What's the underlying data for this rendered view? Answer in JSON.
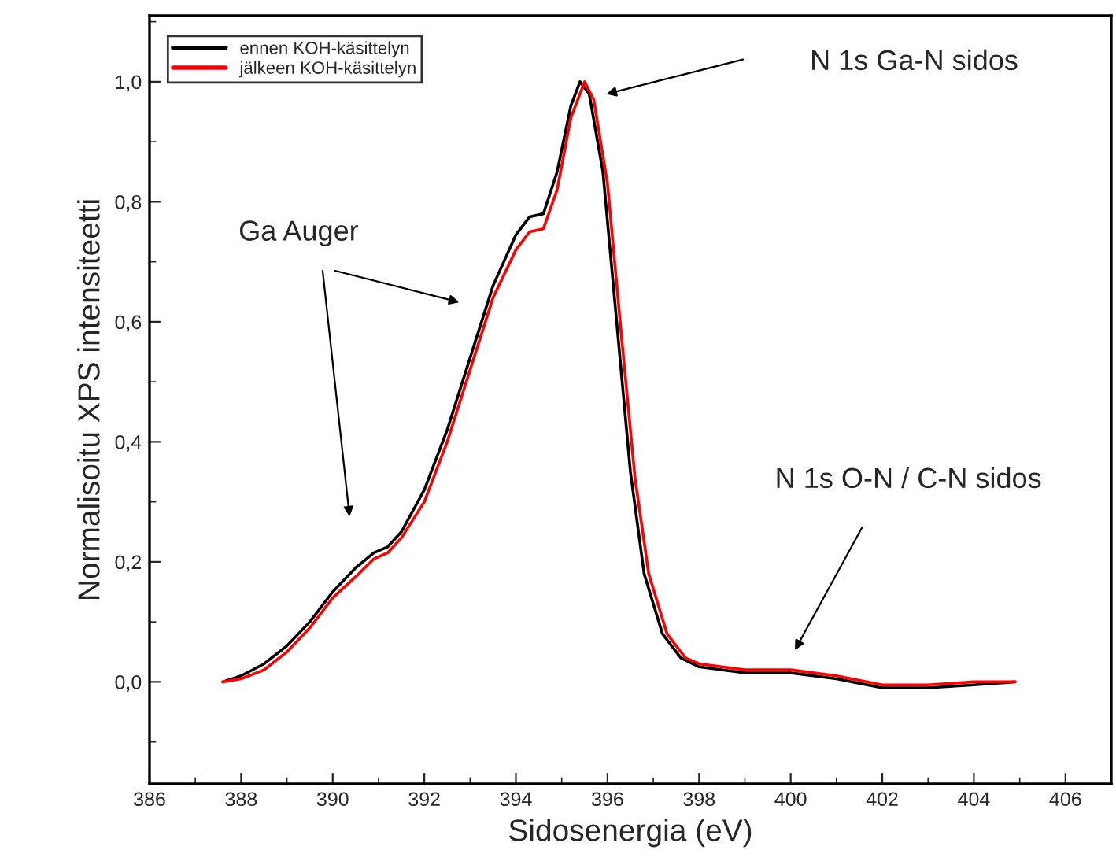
{
  "chart_data": {
    "type": "line",
    "xlabel": "Sidosenergia (eV)",
    "ylabel": "Normalisoitu XPS intensiteetti",
    "xlim": [
      386,
      407
    ],
    "ylim": [
      -0.17,
      1.11
    ],
    "xticks": [
      386,
      388,
      390,
      392,
      394,
      396,
      398,
      400,
      402,
      404,
      406
    ],
    "yticks": [
      {
        "value": 0.0,
        "label": "0,0"
      },
      {
        "value": 0.2,
        "label": "0,2"
      },
      {
        "value": 0.4,
        "label": "0,4"
      },
      {
        "value": 0.6,
        "label": "0,6"
      },
      {
        "value": 0.8,
        "label": "0,8"
      },
      {
        "value": 1.0,
        "label": "1,0"
      }
    ],
    "grid": false,
    "legend": "top left",
    "line_style": "solid",
    "marker": "none",
    "series": [
      {
        "name": "ennen KOH-käsittelyn",
        "color": "#000000",
        "x": [
          387.6,
          388.0,
          388.5,
          389.0,
          389.5,
          390.0,
          390.5,
          390.9,
          391.2,
          391.5,
          392.0,
          392.5,
          393.0,
          393.5,
          394.0,
          394.3,
          394.6,
          394.9,
          395.2,
          395.4,
          395.6,
          395.9,
          396.2,
          396.5,
          396.8,
          397.2,
          397.6,
          398.0,
          399.0,
          400.0,
          401.0,
          402.0,
          403.0,
          404.0,
          404.9
        ],
        "values": [
          0.0,
          0.01,
          0.03,
          0.06,
          0.1,
          0.15,
          0.19,
          0.215,
          0.225,
          0.25,
          0.32,
          0.42,
          0.54,
          0.66,
          0.745,
          0.775,
          0.78,
          0.85,
          0.96,
          1.0,
          0.98,
          0.85,
          0.6,
          0.35,
          0.18,
          0.08,
          0.04,
          0.025,
          0.015,
          0.015,
          0.005,
          -0.01,
          -0.01,
          -0.005,
          0.0
        ]
      },
      {
        "name": "jälkeen KOH-käsittelyn",
        "color": "#ff0000",
        "x": [
          387.6,
          388.0,
          388.5,
          389.0,
          389.5,
          390.0,
          390.5,
          390.9,
          391.2,
          391.5,
          392.0,
          392.5,
          393.0,
          393.5,
          394.0,
          394.3,
          394.6,
          394.9,
          395.2,
          395.5,
          395.7,
          396.0,
          396.3,
          396.6,
          396.9,
          397.3,
          397.7,
          398.0,
          399.0,
          400.0,
          401.0,
          402.0,
          403.0,
          404.0,
          404.9
        ],
        "values": [
          0.0,
          0.005,
          0.02,
          0.05,
          0.09,
          0.14,
          0.175,
          0.205,
          0.215,
          0.24,
          0.3,
          0.4,
          0.52,
          0.64,
          0.72,
          0.75,
          0.755,
          0.82,
          0.94,
          1.0,
          0.97,
          0.83,
          0.58,
          0.34,
          0.18,
          0.08,
          0.04,
          0.03,
          0.02,
          0.02,
          0.01,
          -0.005,
          -0.005,
          0.0,
          0.0
        ]
      }
    ],
    "annotations": [
      "Ga Auger",
      "N 1s Ga-N sidos",
      "N 1s O-N / C-N sidos"
    ]
  }
}
